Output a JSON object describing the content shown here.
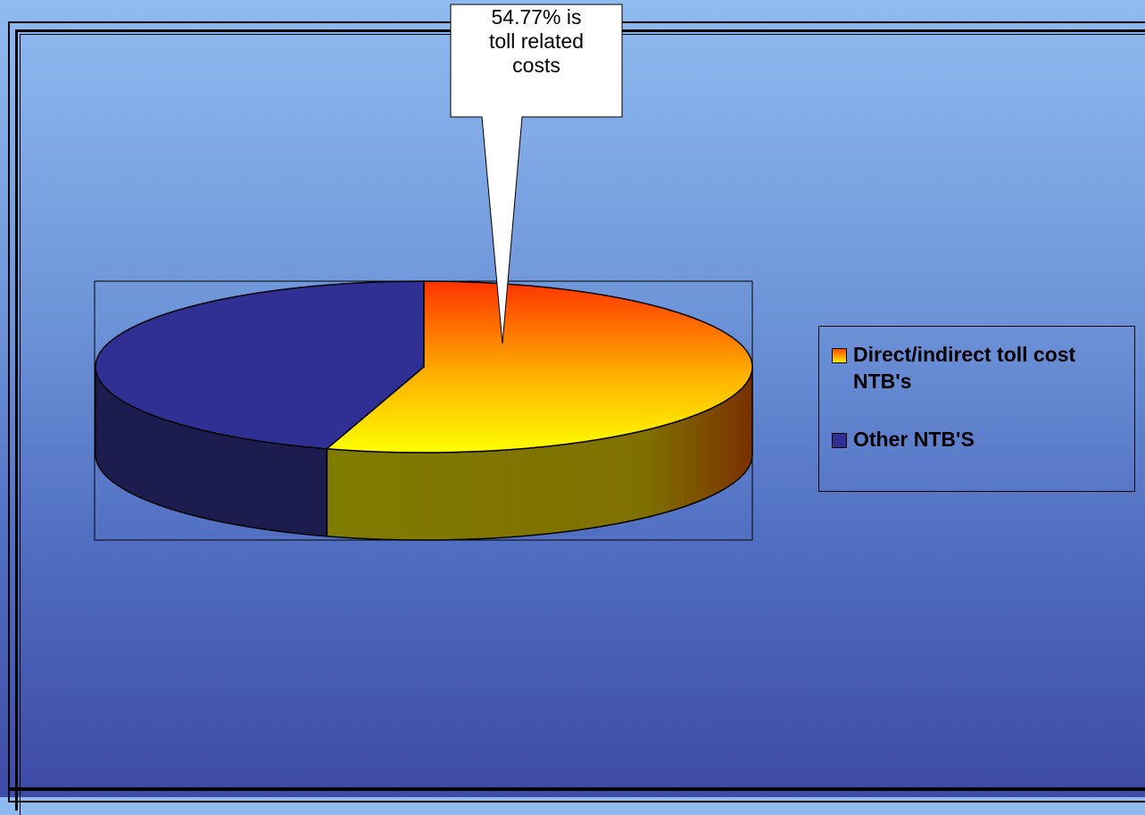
{
  "chart_data": {
    "type": "pie",
    "style": "3d",
    "title": "",
    "categories": [
      "Direct/indirect toll cost NTB's",
      "Other NTB'S"
    ],
    "values": [
      54.77,
      45.23
    ],
    "unit": "%",
    "legend_position": "right",
    "colors": {
      "slice_1_top_start": "#ff3300",
      "slice_1_top_end": "#ffff00",
      "slice_1_side": "#807c00",
      "slice_2_top": "#2f2f94",
      "slice_2_side": "#1c1c4f"
    },
    "annotation": {
      "lines": [
        "54.77% is",
        "toll related",
        "costs"
      ]
    }
  },
  "legend": {
    "items": [
      {
        "label": "Direct/indirect toll cost NTB's",
        "swatch": "orange-gradient"
      },
      {
        "label": "Other NTB'S",
        "swatch": "#2f2f94"
      }
    ]
  },
  "background": {
    "top": "#8fbbf0",
    "bottom": "#3d4aa6"
  }
}
